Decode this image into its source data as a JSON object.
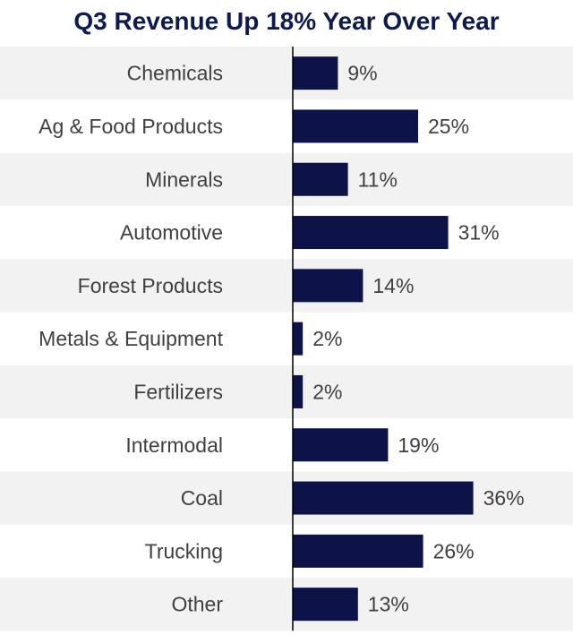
{
  "chart_data": {
    "type": "bar",
    "orientation": "horizontal",
    "title": "Q3 Revenue Up 18% Year Over Year",
    "categories": [
      "Chemicals",
      "Ag & Food Products",
      "Minerals",
      "Automotive",
      "Forest Products",
      "Metals & Equipment",
      "Fertilizers",
      "Intermodal",
      "Coal",
      "Trucking",
      "Other"
    ],
    "values": [
      9,
      25,
      11,
      31,
      14,
      2,
      2,
      19,
      36,
      26,
      13
    ],
    "value_labels": [
      "9%",
      "25%",
      "11%",
      "31%",
      "14%",
      "2%",
      "2%",
      "19%",
      "36%",
      "26%",
      "13%"
    ],
    "value_unit": "%",
    "xlim": [
      0,
      36
    ],
    "grid": false,
    "legend": "none",
    "colors": {
      "bar": "#0e1347",
      "title": "#0f1a4d",
      "label_text": "#404040",
      "row_stripe": "#f2f2f2",
      "axis": "#000000"
    }
  }
}
